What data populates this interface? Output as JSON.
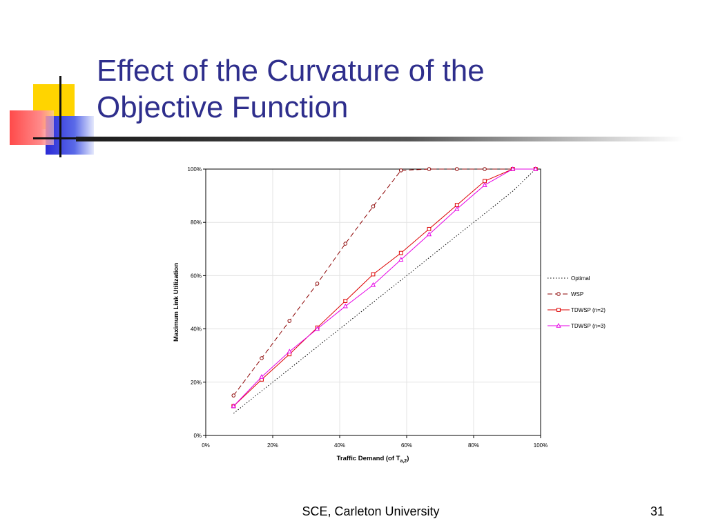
{
  "slide": {
    "title_line1": "Effect of the Curvature of the",
    "title_line2": "Objective Function",
    "footer": "SCE, Carleton University",
    "slide_number": "31",
    "title_color": "#2e2e8c"
  },
  "chart_data": {
    "type": "line",
    "title": "",
    "xlabel": "Traffic Demand (of T",
    "xlabel_subscript": "a,2",
    "xlabel_suffix": ")",
    "ylabel": "Maximum Link Utilization",
    "xlim": [
      0,
      100
    ],
    "ylim": [
      0,
      100
    ],
    "x_ticks": [
      "0%",
      "20%",
      "40%",
      "60%",
      "80%",
      "100%"
    ],
    "y_ticks": [
      "0%",
      "20%",
      "40%",
      "60%",
      "80%",
      "100%"
    ],
    "grid": true,
    "legend_position": "right",
    "series": [
      {
        "name": "Optimal",
        "color": "#000000",
        "style": "dotted",
        "marker": "none",
        "x": [
          8.3,
          16.7,
          25.0,
          33.3,
          41.7,
          50.0,
          58.3,
          66.7,
          75.0,
          83.3,
          91.7,
          98.5
        ],
        "y": [
          8.3,
          16.7,
          25.0,
          33.3,
          41.7,
          50.0,
          58.3,
          66.7,
          75.0,
          83.3,
          91.7,
          100
        ]
      },
      {
        "name": "WSP",
        "color": "#8b0000",
        "style": "dashed",
        "marker": "circle",
        "x": [
          8.3,
          16.7,
          25.0,
          33.3,
          41.7,
          50.0,
          58.3,
          66.7,
          75.0,
          83.3,
          91.7,
          98.5
        ],
        "y": [
          15,
          29,
          43,
          57,
          72,
          86,
          99.5,
          100,
          100,
          100,
          100,
          100
        ]
      },
      {
        "name": "TDWSP (n=2)",
        "color": "#dd0000",
        "style": "solid",
        "marker": "square",
        "x": [
          8.3,
          16.7,
          25.0,
          33.3,
          41.7,
          50.0,
          58.3,
          66.7,
          75.0,
          83.3,
          91.7,
          98.5
        ],
        "y": [
          11,
          21,
          30.5,
          40.5,
          50.5,
          60.5,
          68.5,
          77.5,
          86.5,
          95.5,
          100,
          100
        ]
      },
      {
        "name": "TDWSP (n=3)",
        "color": "#e600e6",
        "style": "solid",
        "marker": "triangle",
        "x": [
          8.3,
          16.7,
          25.0,
          33.3,
          41.7,
          50.0,
          58.3,
          66.7,
          75.0,
          83.3,
          91.7,
          98.5
        ],
        "y": [
          11,
          22,
          31.5,
          40,
          48.5,
          56.5,
          66,
          75.5,
          85,
          94,
          100,
          100
        ]
      }
    ]
  }
}
